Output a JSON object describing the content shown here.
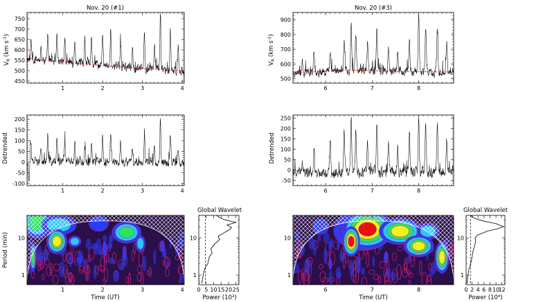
{
  "colors": {
    "axis": "#000000",
    "trace": "#000000",
    "trend": "#d42020",
    "wavelet_bg": "#2a0f4a",
    "wavelet_blue": "#2a3cf0",
    "wavelet_cyan": "#28c8ff",
    "wavelet_green": "#30e060",
    "wavelet_yellow": "#f0f020",
    "wavelet_red": "#e81010",
    "wavelet_contour": "#c0207a"
  },
  "chart_data": [
    {
      "id": "v1",
      "type": "line",
      "title": "Nov. 20 (#1)",
      "ylabel": "VR (km s-1)",
      "xlabel": "",
      "xlim": [
        0.1,
        4.05
      ],
      "ylim": [
        440,
        780
      ],
      "xticks": [
        1,
        2,
        3,
        4
      ],
      "yticks": [
        450,
        500,
        550,
        600,
        650,
        700,
        750
      ],
      "series": [
        {
          "name": "VR",
          "values": "dense-trace (baseline ~560 falling to ~505, spikes to 760)"
        },
        {
          "name": "trend",
          "x": [
            0.1,
            1,
            2,
            3,
            4.05
          ],
          "values": [
            560,
            540,
            525,
            510,
            500
          ]
        }
      ],
      "base": [
        [
          0.1,
          560
        ],
        [
          1,
          540
        ],
        [
          2,
          525
        ],
        [
          3,
          510
        ],
        [
          4.05,
          500
        ]
      ],
      "spikes": [
        [
          0.2,
          640
        ],
        [
          0.45,
          620
        ],
        [
          0.62,
          690
        ],
        [
          0.85,
          670
        ],
        [
          1.05,
          660
        ],
        [
          1.3,
          650
        ],
        [
          1.55,
          630
        ],
        [
          1.72,
          660
        ],
        [
          2.0,
          680
        ],
        [
          2.2,
          700
        ],
        [
          2.45,
          640
        ],
        [
          2.75,
          620
        ],
        [
          3.05,
          700
        ],
        [
          3.3,
          640
        ],
        [
          3.45,
          765
        ],
        [
          3.7,
          690
        ],
        [
          3.9,
          620
        ]
      ],
      "noise": 16
    },
    {
      "id": "v2",
      "type": "line",
      "title": "Nov. 20 (#3)",
      "ylabel": "VR (km s-1)",
      "xlabel": "",
      "xlim": [
        5.3,
        8.75
      ],
      "ylim": [
        470,
        950
      ],
      "xticks": [
        6,
        7,
        8
      ],
      "yticks": [
        500,
        600,
        700,
        800,
        900
      ],
      "series": [
        {
          "name": "VR",
          "values": "dense-trace (baseline ~540-560, spikes to 940)"
        },
        {
          "name": "trend",
          "x": [
            5.3,
            6.5,
            7.5,
            8.75
          ],
          "values": [
            540,
            560,
            550,
            545
          ]
        }
      ],
      "base": [
        [
          5.3,
          540
        ],
        [
          6.5,
          560
        ],
        [
          7.5,
          550
        ],
        [
          8.75,
          545
        ]
      ],
      "spikes": [
        [
          5.5,
          620
        ],
        [
          5.75,
          660
        ],
        [
          6.1,
          700
        ],
        [
          6.4,
          760
        ],
        [
          6.55,
          870
        ],
        [
          6.65,
          800
        ],
        [
          6.9,
          740
        ],
        [
          7.1,
          860
        ],
        [
          7.35,
          700
        ],
        [
          7.55,
          680
        ],
        [
          7.8,
          760
        ],
        [
          8.0,
          940
        ],
        [
          8.15,
          840
        ],
        [
          8.4,
          820
        ],
        [
          8.6,
          760
        ]
      ],
      "noise": 22
    },
    {
      "id": "d1",
      "type": "line",
      "title": "",
      "ylabel": "Detrended",
      "xlabel": "",
      "xlim": [
        0.1,
        4.05
      ],
      "ylim": [
        -110,
        220
      ],
      "xticks": [
        1,
        2,
        3,
        4
      ],
      "yticks": [
        -100,
        -50,
        0,
        50,
        100,
        150,
        200
      ],
      "series": [
        {
          "name": "detrended",
          "values": "dense-trace (fluctuates about 0, spikes to 200, dips to -100)"
        }
      ],
      "base": [
        [
          0.1,
          0
        ],
        [
          4.05,
          0
        ]
      ],
      "spikes": [
        [
          0.15,
          -95
        ],
        [
          0.2,
          90
        ],
        [
          0.45,
          70
        ],
        [
          0.62,
          130
        ],
        [
          0.85,
          110
        ],
        [
          1.05,
          100
        ],
        [
          1.3,
          90
        ],
        [
          1.55,
          70
        ],
        [
          1.72,
          100
        ],
        [
          2.0,
          120
        ],
        [
          2.2,
          140
        ],
        [
          2.45,
          80
        ],
        [
          2.75,
          60
        ],
        [
          3.05,
          140
        ],
        [
          3.3,
          80
        ],
        [
          3.45,
          205
        ],
        [
          3.7,
          130
        ],
        [
          3.9,
          60
        ]
      ],
      "noise": 15
    },
    {
      "id": "d2",
      "type": "line",
      "title": "",
      "ylabel": "Detrended",
      "xlabel": "",
      "xlim": [
        5.3,
        8.75
      ],
      "ylim": [
        -75,
        265
      ],
      "xticks": [
        6,
        7,
        8
      ],
      "yticks": [
        -50,
        0,
        50,
        100,
        150,
        200,
        250
      ],
      "series": [
        {
          "name": "detrended",
          "values": "dense-trace (fluctuates about 0, spikes to 255)"
        }
      ],
      "base": [
        [
          5.3,
          -10
        ],
        [
          8.75,
          -10
        ]
      ],
      "spikes": [
        [
          5.5,
          60
        ],
        [
          5.75,
          100
        ],
        [
          6.1,
          140
        ],
        [
          6.4,
          200
        ],
        [
          6.55,
          255
        ],
        [
          6.65,
          180
        ],
        [
          6.9,
          150
        ],
        [
          7.1,
          230
        ],
        [
          7.35,
          130
        ],
        [
          7.55,
          110
        ],
        [
          7.8,
          170
        ],
        [
          8.0,
          250
        ],
        [
          8.15,
          200
        ],
        [
          8.4,
          230
        ],
        [
          8.6,
          150
        ]
      ],
      "noise": 20
    },
    {
      "id": "w1",
      "type": "heatmap",
      "title": "",
      "ylabel": "Period (min)",
      "xlabel": "Time (UT)",
      "xlim": [
        0.1,
        4.05
      ],
      "ylim_log": [
        0.55,
        40
      ],
      "xticks": [
        1,
        2,
        3,
        4
      ],
      "yticks": [
        1,
        10
      ],
      "ytick_labels": [
        "1",
        "10"
      ],
      "blobs": [
        {
          "x": 0.35,
          "p": 26,
          "rx": 0.35,
          "ry": 0.22,
          "level": "green"
        },
        {
          "x": 0.9,
          "p": 22,
          "rx": 0.55,
          "ry": 0.18,
          "level": "cyan"
        },
        {
          "x": 1.9,
          "p": 24,
          "rx": 0.45,
          "ry": 0.2,
          "level": "blue"
        },
        {
          "x": 2.6,
          "p": 14,
          "rx": 0.35,
          "ry": 0.15,
          "level": "green"
        },
        {
          "x": 0.85,
          "p": 8,
          "rx": 0.2,
          "ry": 0.14,
          "level": "yellow"
        },
        {
          "x": 1.3,
          "p": 8,
          "rx": 0.2,
          "ry": 0.1,
          "level": "cyan"
        },
        {
          "x": 0.25,
          "p": 3,
          "rx": 0.08,
          "ry": 0.2,
          "level": "green"
        },
        {
          "x": 2.05,
          "p": 5,
          "rx": 0.1,
          "ry": 0.2,
          "level": "blue"
        },
        {
          "x": 2.55,
          "p": 4,
          "rx": 0.08,
          "ry": 0.18,
          "level": "blue"
        },
        {
          "x": 2.95,
          "p": 7,
          "rx": 0.15,
          "ry": 0.15,
          "level": "cyan"
        },
        {
          "x": 3.5,
          "p": 6,
          "rx": 0.1,
          "ry": 0.15,
          "level": "blue"
        }
      ]
    },
    {
      "id": "w2",
      "type": "heatmap",
      "title": "",
      "ylabel": "",
      "xlabel": "Time (UT)",
      "xlim": [
        5.3,
        8.75
      ],
      "ylim_log": [
        0.55,
        40
      ],
      "xticks": [
        6,
        7,
        8
      ],
      "yticks": [
        1,
        10
      ],
      "ytick_labels": [
        "1",
        "10"
      ],
      "blobs": [
        {
          "x": 6.8,
          "p": 16,
          "rx": 0.6,
          "ry": 0.28,
          "level": "green"
        },
        {
          "x": 6.85,
          "p": 16,
          "rx": 0.45,
          "ry": 0.22,
          "level": "yellow"
        },
        {
          "x": 6.9,
          "p": 17,
          "rx": 0.35,
          "ry": 0.18,
          "level": "red"
        },
        {
          "x": 6.55,
          "p": 8,
          "rx": 0.12,
          "ry": 0.14,
          "level": "red"
        },
        {
          "x": 7.6,
          "p": 15,
          "rx": 0.35,
          "ry": 0.15,
          "level": "yellow"
        },
        {
          "x": 8.2,
          "p": 15,
          "rx": 0.3,
          "ry": 0.15,
          "level": "cyan"
        },
        {
          "x": 8.0,
          "p": 6,
          "rx": 0.25,
          "ry": 0.12,
          "level": "yellow"
        },
        {
          "x": 8.5,
          "p": 3,
          "rx": 0.12,
          "ry": 0.18,
          "level": "yellow"
        },
        {
          "x": 5.9,
          "p": 20,
          "rx": 0.3,
          "ry": 0.2,
          "level": "blue"
        },
        {
          "x": 6.1,
          "p": 2,
          "rx": 0.06,
          "ry": 0.15,
          "level": "blue"
        },
        {
          "x": 7.3,
          "p": 3,
          "rx": 0.08,
          "ry": 0.15,
          "level": "blue"
        }
      ]
    },
    {
      "id": "g1",
      "type": "line",
      "title": "Global Wavelet",
      "xlabel": "Power (10³)",
      "ylabel": "",
      "xlim": [
        0,
        27
      ],
      "ylim_log": [
        0.55,
        40
      ],
      "xticks": [
        0,
        5,
        10,
        15,
        20,
        25
      ],
      "yticks": [
        1,
        10
      ],
      "ytick_labels": [
        "1",
        "10"
      ],
      "series": [
        {
          "name": "power",
          "p": [
            0.6,
            1,
            1.5,
            2,
            3,
            4,
            5,
            7,
            9,
            11,
            13,
            16,
            19,
            22,
            26,
            30,
            35,
            40
          ],
          "values": [
            2,
            3,
            4,
            6,
            7,
            9,
            8,
            11,
            14,
            13,
            16,
            20,
            22,
            19,
            25,
            18,
            14,
            12
          ]
        },
        {
          "name": "significance",
          "value": 4.5
        }
      ]
    },
    {
      "id": "g2",
      "type": "line",
      "title": "Global Wavelet",
      "xlabel": "Power (10⁴)",
      "ylabel": "",
      "xlim": [
        0,
        13
      ],
      "ylim_log": [
        0.55,
        40
      ],
      "xticks": [
        0,
        2,
        4,
        6,
        8,
        10,
        12
      ],
      "yticks": [
        1,
        10
      ],
      "ytick_labels": [
        "1",
        "10"
      ],
      "series": [
        {
          "name": "power",
          "p": [
            0.6,
            1,
            1.5,
            2,
            3,
            4,
            6,
            8,
            10,
            12,
            15,
            18,
            20,
            24,
            28,
            33,
            40
          ],
          "values": [
            0.3,
            0.6,
            1,
            1.5,
            2,
            2.2,
            2.8,
            3.2,
            3,
            4,
            7,
            11,
            12.5,
            10,
            6,
            3,
            1.5
          ]
        },
        {
          "name": "significance",
          "value": 1.5
        }
      ]
    }
  ]
}
